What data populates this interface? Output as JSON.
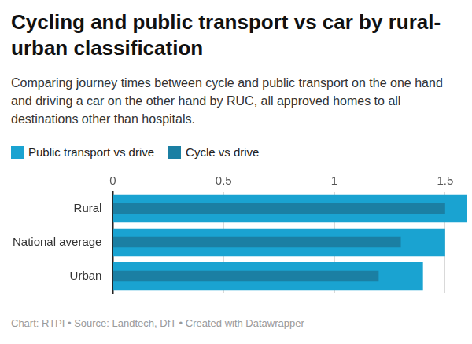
{
  "chart_data": {
    "type": "bar",
    "orientation": "horizontal",
    "title": "Cycling and public transport vs car by rural-urban classification",
    "subtitle": "Comparing journey times between cycle and public transport on the one hand and driving a car on the other hand by RUC, all approved homes to all destinations other than hospitals.",
    "source": "Chart: RTPI • Source: Landtech, DfT • Created with Datawrapper",
    "categories": [
      "Rural",
      "National average",
      "Urban"
    ],
    "series": [
      {
        "name": "Public transport vs drive",
        "color": "#1aa3d1",
        "values": [
          1.6,
          1.5,
          1.4
        ]
      },
      {
        "name": "Cycle vs drive",
        "color": "#1b7fa3",
        "values": [
          1.5,
          1.3,
          1.2
        ]
      }
    ],
    "xlim": [
      0,
      1.6
    ],
    "xticks": [
      0,
      0.5,
      1,
      1.5
    ],
    "grid": true,
    "legend": "top-left"
  }
}
